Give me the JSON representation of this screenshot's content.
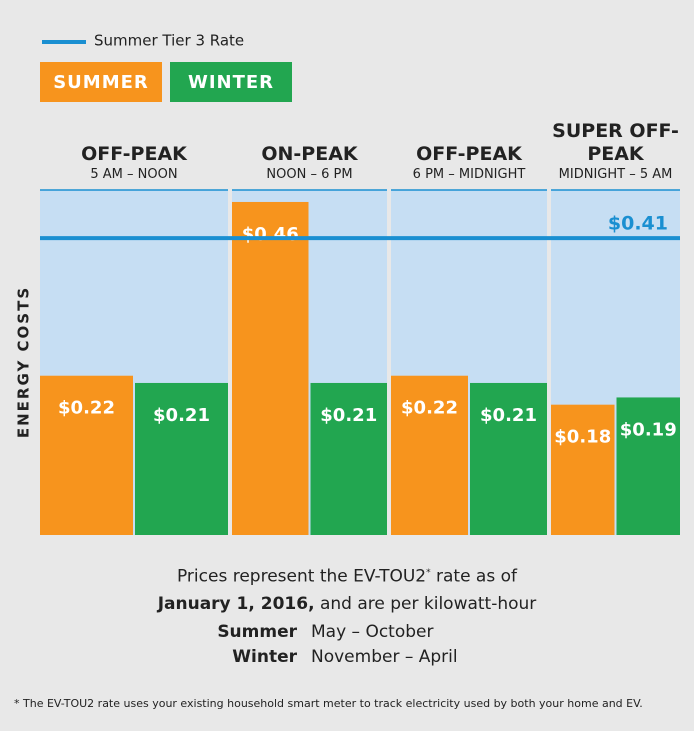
{
  "chart_data": {
    "type": "grouped-bar",
    "y_axis_label": "ENERGY COSTS",
    "categories": [
      "OFF-PEAK",
      "ON-PEAK",
      "OFF-PEAK",
      "SUPER OFF-PEAK"
    ],
    "category_times": [
      "5 AM – NOON",
      "NOON – 6 PM",
      "6 PM – MIDNIGHT",
      "MIDNIGHT – 5 AM"
    ],
    "series": [
      {
        "name": "SUMMER",
        "color": "#f7941d",
        "values": [
          0.22,
          0.46,
          0.22,
          0.18
        ],
        "value_labels": [
          "$0.22",
          "$0.46",
          "$0.22",
          "$0.18"
        ]
      },
      {
        "name": "WINTER",
        "color": "#22a650",
        "values": [
          0.21,
          0.21,
          0.21,
          0.19
        ],
        "value_labels": [
          "$0.21",
          "$0.21",
          "$0.21",
          "$0.19"
        ]
      }
    ],
    "reference_line": {
      "name": "Summer Tier 3 Rate",
      "value": 0.41,
      "label": "$0.41",
      "color": "#1a8fd1"
    },
    "ylim": [
      0,
      0.5
    ]
  },
  "notes": {
    "intro": "Prices represent the EV-TOU2",
    "intro_mark": "*",
    "intro_end": " rate as of",
    "date": "January 1, 2016,",
    "date_end": " and are per kilowatt-hour",
    "seasons": [
      {
        "name": "Summer",
        "months": "May – October"
      },
      {
        "name": "Winter",
        "months": "November – April"
      }
    ],
    "footnote": "* The EV-TOU2 rate uses your existing household smart meter to track electricity used by both your home and EV."
  }
}
